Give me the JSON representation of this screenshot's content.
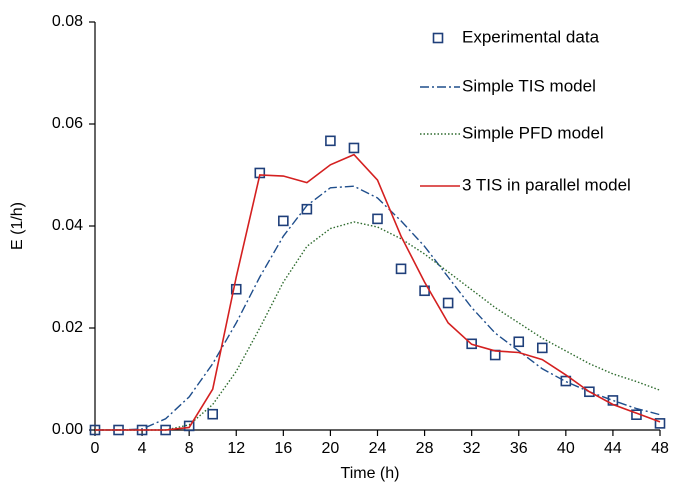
{
  "chart_data": {
    "type": "line",
    "x_label": "Time (h)",
    "y_label": "E (1/h)",
    "x": [
      0,
      2,
      4,
      6,
      8,
      10,
      12,
      14,
      16,
      18,
      20,
      22,
      24,
      26,
      28,
      30,
      32,
      34,
      36,
      38,
      40,
      42,
      44,
      46,
      48
    ],
    "series": [
      {
        "name": "Experimental data",
        "color": "#1f3f7a",
        "style": "markers",
        "values": [
          0,
          0,
          0,
          0,
          0.0008,
          0.0031,
          0.0276,
          0.0504,
          0.041,
          0.0433,
          0.0567,
          0.0553,
          0.0414,
          0.0316,
          0.0273,
          0.0249,
          0.0169,
          0.0147,
          0.0173,
          0.0161,
          0.0096,
          0.0075,
          0.0058,
          0.003,
          0.0013
        ]
      },
      {
        "name": "Simple TIS model",
        "color": "#1f4e8c",
        "style": "dashdot",
        "values": [
          0,
          0,
          0.0002,
          0.0022,
          0.0065,
          0.013,
          0.021,
          0.03,
          0.038,
          0.044,
          0.0475,
          0.0478,
          0.0455,
          0.041,
          0.036,
          0.03,
          0.024,
          0.019,
          0.0155,
          0.012,
          0.0095,
          0.0075,
          0.0058,
          0.0042,
          0.003
        ]
      },
      {
        "name": "Simple PFD model",
        "color": "#2e6b2e",
        "style": "dotted",
        "values": [
          0,
          0,
          0,
          0,
          0.001,
          0.005,
          0.0115,
          0.02,
          0.029,
          0.036,
          0.0395,
          0.0408,
          0.0398,
          0.0375,
          0.0345,
          0.031,
          0.0275,
          0.024,
          0.021,
          0.018,
          0.0155,
          0.013,
          0.011,
          0.0095,
          0.0078
        ]
      },
      {
        "name": "3 TIS in parallel model",
        "color": "#d42020",
        "style": "solid",
        "values": [
          0,
          0,
          0,
          0,
          0.0005,
          0.008,
          0.03,
          0.05,
          0.0498,
          0.0485,
          0.052,
          0.054,
          0.049,
          0.038,
          0.029,
          0.021,
          0.0168,
          0.0155,
          0.0152,
          0.0138,
          0.0108,
          0.0075,
          0.005,
          0.0033,
          0.0016
        ]
      }
    ],
    "xlim": [
      0,
      48
    ],
    "xticks": [
      0,
      4,
      8,
      12,
      16,
      20,
      24,
      28,
      32,
      36,
      40,
      44,
      48
    ],
    "ylim": [
      0,
      0.08
    ],
    "yticks": [
      {
        "value": 0,
        "label": "0.00"
      },
      0.02,
      0.04,
      0.06,
      0.08
    ],
    "grid": false,
    "legend": "top-right"
  }
}
